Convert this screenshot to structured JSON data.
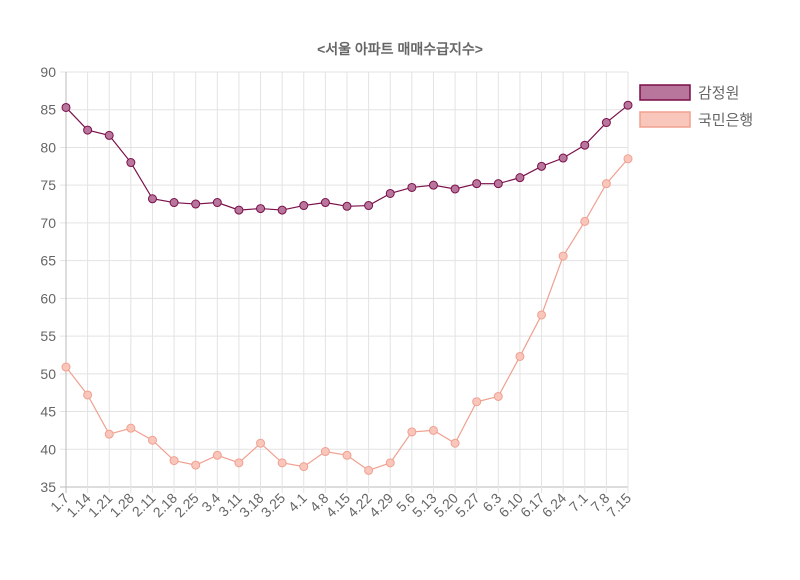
{
  "chart_data": {
    "type": "line",
    "title": "<서울 아파트 매매수급지수>",
    "xlabel": "",
    "ylabel": "",
    "ylim": [
      35,
      90
    ],
    "yticks": [
      35,
      40,
      45,
      50,
      55,
      60,
      65,
      70,
      75,
      80,
      85,
      90
    ],
    "grid": true,
    "legend_position": "right",
    "categories": [
      "1.7",
      "1.14",
      "1.21",
      "1.28",
      "2.11",
      "2.18",
      "2.25",
      "3.4",
      "3.11",
      "3.18",
      "3.25",
      "4.1",
      "4.8",
      "4.15",
      "4.22",
      "4.29",
      "5.6",
      "5.13",
      "5.20",
      "5.27",
      "6.3",
      "6.10",
      "6.17",
      "6.24",
      "7.1",
      "7.8",
      "7.15"
    ],
    "series": [
      {
        "name": "감정원",
        "color": "#7a0f4a",
        "fill": "#b9769c",
        "values": [
          85.3,
          82.3,
          81.6,
          78.0,
          73.2,
          72.7,
          72.5,
          72.7,
          71.7,
          71.9,
          71.7,
          72.3,
          72.7,
          72.2,
          72.3,
          73.9,
          74.7,
          75.0,
          74.5,
          75.2,
          75.2,
          76.0,
          77.5,
          78.6,
          80.3,
          83.3,
          85.6
        ]
      },
      {
        "name": "국민은행",
        "color": "#f0a090",
        "fill": "#f9c6bc",
        "values": [
          50.9,
          47.2,
          42.0,
          42.8,
          41.2,
          38.5,
          37.9,
          39.2,
          38.2,
          40.8,
          38.2,
          37.7,
          39.7,
          39.2,
          37.2,
          38.2,
          42.3,
          42.5,
          40.8,
          46.3,
          47.0,
          52.3,
          57.8,
          65.6,
          70.2,
          75.2,
          78.5
        ]
      }
    ]
  }
}
